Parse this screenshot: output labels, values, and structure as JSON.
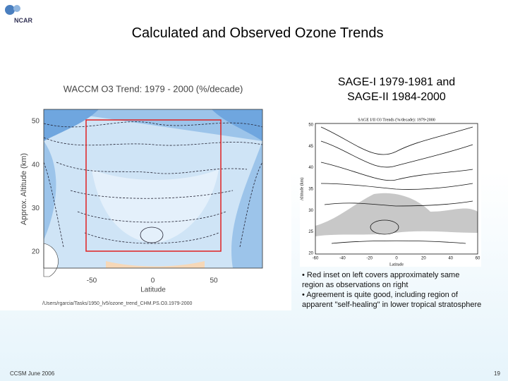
{
  "logo": "NCAR",
  "title": "Calculated and Observed Ozone Trends",
  "left_figure": {
    "title": "WACCM O3 Trend: 1979 - 2000 (%/decade)",
    "y_label": "Approx. Altitude (km)",
    "y_ticks": [
      "50",
      "40",
      "30",
      "20"
    ],
    "x_label": "Latitude",
    "x_ticks": [
      "-50",
      "0",
      "50"
    ],
    "path": "/Users/rgarcia/Tasks/1950_lv5/ozone_trend_CHM.PS.O3.1979-2000"
  },
  "right_figure": {
    "heading": [
      "SAGE-I 1979-1981 and",
      "SAGE-II 1984-2000"
    ],
    "title": "SAGE I/II O3 Trends (%/decade): 1979-2000",
    "y_label": "Altitude (km)",
    "y_ticks": [
      "50",
      "45",
      "40",
      "35",
      "30",
      "25",
      "20"
    ],
    "x_label": "Latitude",
    "x_ticks": [
      "-60",
      "-40",
      "-20",
      "0",
      "20",
      "40",
      "60"
    ]
  },
  "notes": [
    "• Red inset on left covers approximately same region as observations on right",
    "• Agreement is quite good, including region of apparent \"self-healing\" in lower tropical stratosphere"
  ],
  "footer": {
    "left": "CCSM June 2006",
    "right": "19"
  }
}
